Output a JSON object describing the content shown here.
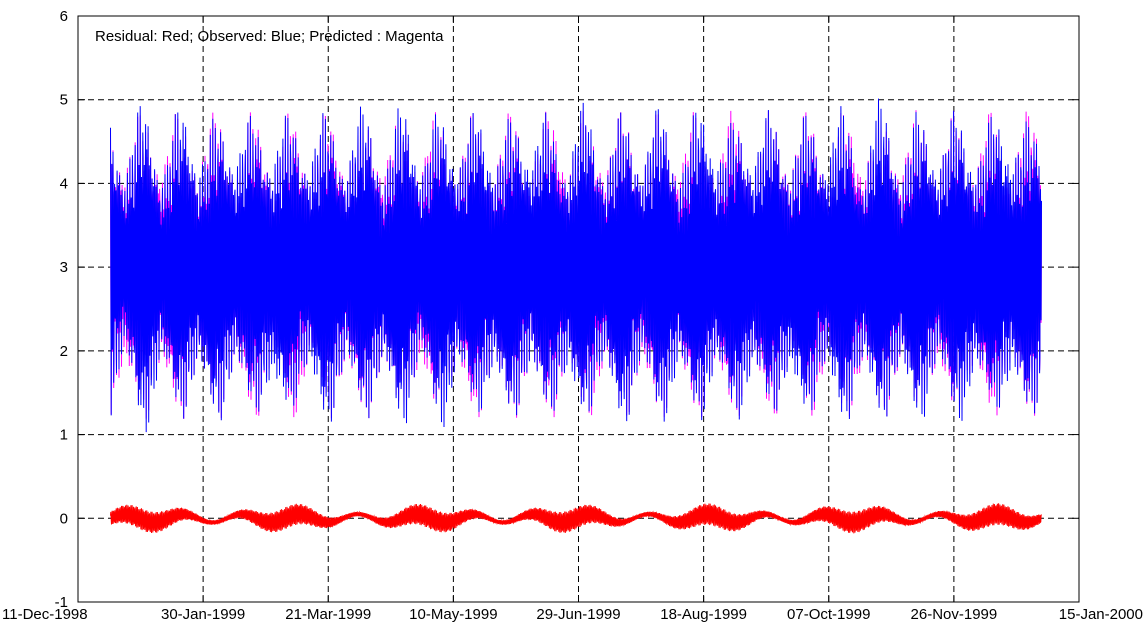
{
  "chart_data": {
    "type": "line",
    "legend_text": "Residual: Red; Observed: Blue; Predicted : Magenta",
    "legend_placement": "top-left",
    "grid": true,
    "grid_style": "dashed",
    "xlim": [
      "1998-12-11",
      "2000-01-15"
    ],
    "ylim": [
      -1,
      6
    ],
    "x_ticks": [
      "1998-12-11",
      "1999-01-30",
      "1999-03-21",
      "1999-05-10",
      "1999-06-29",
      "1999-08-18",
      "1999-10-07",
      "1999-11-26",
      "2000-01-15"
    ],
    "x_tick_labels": [
      "11-Dec-1998",
      "30-Jan-1999",
      "21-Mar-1999",
      "10-May-1999",
      "29-Jun-1999",
      "18-Aug-1999",
      "07-Oct-1999",
      "26-Nov-1999",
      "15-Jan-2000"
    ],
    "y_ticks": [
      -1,
      0,
      1,
      2,
      3,
      4,
      5,
      6
    ],
    "y_tick_labels": [
      "-1",
      "0",
      "1",
      "2",
      "3",
      "4",
      "5",
      "6"
    ],
    "series": [
      {
        "key": "predicted",
        "color": "#ff00ff",
        "x_range": [
          "1998-12-24",
          "1999-12-31"
        ],
        "mean": 3.0,
        "amplitude_min": 1.2,
        "amplitude_max": 1.95,
        "description": "semidiurnal oscillation, fortnightly spring-neap envelope"
      },
      {
        "key": "observed",
        "color": "#0000ff",
        "x_range": [
          "1998-12-24",
          "1999-12-31"
        ],
        "mean": 3.0,
        "amplitude_min": 1.2,
        "amplitude_max": 2.05,
        "min": 0.95,
        "max": 5.05
      },
      {
        "key": "residual",
        "color": "#ff0000",
        "x_range": [
          "1998-12-24",
          "1999-12-31"
        ],
        "mean": 0.0,
        "min": -0.2,
        "max": 0.2
      }
    ]
  }
}
